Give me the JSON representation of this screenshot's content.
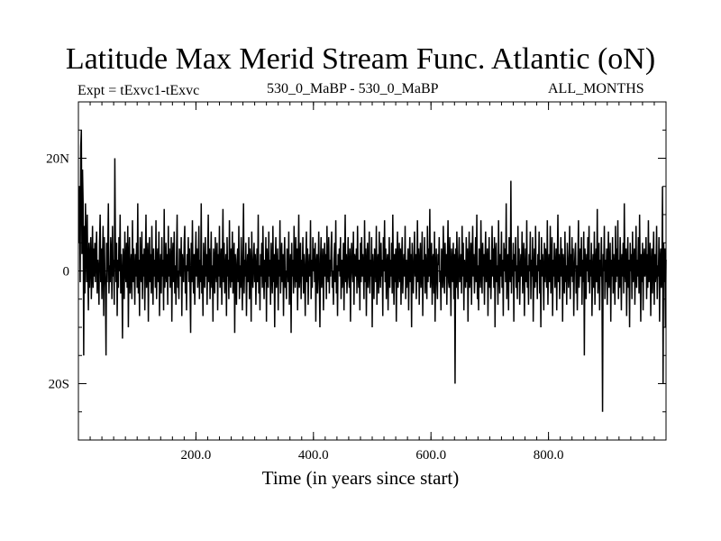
{
  "chart_data": {
    "type": "line",
    "title": "Latitude Max Merid Stream Func. Atlantic (oN)",
    "subtitle_left": "Expt = tExvc1-tExvc",
    "subtitle_center": "530_0_MaBP - 530_0_MaBP",
    "subtitle_right": "ALL_MONTHS",
    "xlabel": "Time (in years since start)",
    "ylabel": "",
    "xlim": [
      0,
      1000
    ],
    "ylim": [
      -30,
      30
    ],
    "x_major_ticks": [
      {
        "value": 200,
        "label": "200.0"
      },
      {
        "value": 400,
        "label": "400.0"
      },
      {
        "value": 600,
        "label": "600.0"
      },
      {
        "value": 800,
        "label": "800.0"
      }
    ],
    "y_major_ticks": [
      {
        "value": 20,
        "label": "20N"
      },
      {
        "value": 0,
        "label": "0"
      },
      {
        "value": -20,
        "label": "20S"
      }
    ],
    "y_minor_step": 5,
    "x_minor_step": 20,
    "zero_line": true,
    "series": [
      {
        "name": "Latitude of max meridional stream function (Atlantic)",
        "start_x": 1,
        "step_x": 1,
        "values": [
          5,
          15,
          -2,
          22,
          25,
          3,
          18,
          12,
          -15,
          8,
          -4,
          12,
          4,
          -2,
          10,
          0,
          -7,
          5,
          -3,
          2,
          6,
          -5,
          0,
          8,
          -3,
          4,
          -1,
          5,
          -2,
          3,
          7,
          -4,
          2,
          0,
          -6,
          5,
          10,
          -2,
          4,
          -5,
          2,
          8,
          -8,
          6,
          0,
          -3,
          -15,
          5,
          -2,
          4,
          12,
          -4,
          1,
          -2,
          6,
          3,
          -5,
          8,
          -1,
          2,
          -6,
          20,
          4,
          -2,
          5,
          -8,
          2,
          -3,
          6,
          0,
          10,
          -4,
          3,
          -1,
          -12,
          4,
          2,
          -5,
          7,
          0,
          -2,
          5,
          -3,
          8,
          -10,
          2,
          6,
          -4,
          0,
          3,
          -5,
          9,
          -2,
          4,
          0,
          -6,
          3,
          -1,
          5,
          -3,
          12,
          -4,
          2,
          -8,
          6,
          0,
          -2,
          7,
          -5,
          3,
          -1,
          4,
          -7,
          2,
          10,
          -3,
          0,
          5,
          -9,
          2,
          6,
          -2,
          3,
          -4,
          8,
          0,
          -6,
          4,
          -1,
          2,
          -3,
          9,
          -5,
          1,
          4,
          -2,
          7,
          -8,
          0,
          3,
          -4,
          6,
          -1,
          2,
          -7,
          11,
          -3,
          0,
          5,
          -2,
          3,
          -6,
          8,
          -1,
          4,
          -3,
          0,
          6,
          -9,
          2,
          5,
          -2,
          7,
          -4,
          1,
          -6,
          3,
          10,
          -3,
          0,
          -5,
          4,
          2,
          -1,
          6,
          -8,
          3,
          0,
          -2,
          5,
          8,
          -4,
          1,
          -7,
          3,
          0,
          6,
          -2,
          4,
          -3,
          -11,
          5,
          -2,
          9,
          0,
          -4,
          3,
          -6,
          2,
          7,
          -1,
          4,
          -3,
          0,
          8,
          -5,
          2,
          -2,
          12,
          -4,
          1,
          -8,
          5,
          0,
          -3,
          6,
          -1,
          3,
          -6,
          2,
          10,
          -2,
          4,
          -5,
          0,
          7,
          -3,
          1,
          -9,
          4,
          2,
          -4,
          6,
          0,
          -2,
          5,
          -7,
          3,
          -1,
          8,
          -3,
          0,
          4,
          -6,
          2,
          11,
          -2,
          5,
          -4,
          0,
          3,
          -8,
          6,
          -1,
          2,
          -5,
          9,
          0,
          -3,
          4,
          -2,
          7,
          -4,
          1,
          5,
          -11,
          3,
          0,
          -6,
          2,
          4,
          -2,
          8,
          -5,
          1,
          -3,
          6,
          0,
          -7,
          3,
          12,
          -4,
          2,
          -1,
          5,
          -8,
          0,
          3,
          -2,
          6,
          -5,
          4,
          1,
          -9,
          7,
          0,
          -3,
          2,
          5,
          -2,
          3,
          -6,
          0,
          4,
          -2,
          10,
          -4,
          1,
          -7,
          3,
          -1,
          5,
          -3,
          8,
          0,
          -5,
          2,
          -2,
          6,
          -9,
          4,
          0,
          -3,
          7,
          -1,
          2,
          -6,
          5,
          0,
          -4,
          8,
          -2,
          3,
          -10,
          1,
          6,
          -3,
          0,
          4,
          -7,
          2,
          -1,
          9,
          -4,
          0,
          5,
          -2,
          3,
          -8,
          1,
          6,
          -3,
          0,
          -5,
          4,
          2,
          -2,
          7,
          -6,
          0,
          3,
          -11,
          5,
          -1,
          2,
          -4,
          8,
          0,
          -3,
          6,
          -2,
          4,
          -7,
          1,
          10,
          -3,
          0,
          5,
          -5,
          2,
          -1,
          6,
          -4,
          3,
          0,
          -8,
          2,
          7,
          -2,
          4,
          -6,
          0,
          3,
          -1,
          9,
          -5,
          2,
          -3,
          6,
          0,
          4,
          -2,
          5,
          -9,
          1,
          3,
          -4,
          0,
          7,
          -2,
          -10,
          2,
          6,
          -3,
          0,
          4,
          -7,
          1,
          5,
          -1,
          3,
          -5,
          8,
          0,
          -2,
          6,
          -4,
          2,
          -1,
          4,
          7,
          -3,
          0,
          -6,
          2,
          5,
          -2,
          9,
          -4,
          1,
          -8,
          3,
          0,
          4,
          -1,
          6,
          -5,
          2,
          -3,
          0,
          5,
          -7,
          2,
          10,
          -2,
          3,
          -4,
          0,
          6,
          -1,
          -3,
          4,
          -9,
          1,
          5,
          0,
          -2,
          7,
          -6,
          3,
          2,
          -1,
          4,
          -4,
          8,
          0,
          -3,
          2,
          -7,
          5,
          -2,
          6,
          -1,
          3,
          0,
          -5,
          9,
          -2,
          4,
          -8,
          1,
          5,
          -3,
          0,
          7,
          -4,
          2,
          -1,
          6,
          -10,
          3,
          0,
          -5,
          4,
          2,
          -2,
          8,
          -6,
          1,
          3,
          -4,
          7,
          0,
          -3,
          5,
          -1,
          2,
          -8,
          6,
          0,
          9,
          -2,
          4,
          -5,
          1,
          3,
          -7,
          0,
          6,
          -3,
          2,
          -1,
          5,
          -4,
          10,
          0,
          -6,
          3,
          -2,
          4,
          -9,
          1,
          7,
          -3,
          0,
          5,
          -2,
          4,
          -6,
          2,
          6,
          -4,
          0,
          3,
          -1,
          8,
          -5,
          2,
          -3,
          0,
          4,
          -7,
          1,
          6,
          -2,
          3,
          -10,
          5,
          0,
          -4,
          2,
          7,
          -1,
          3,
          -5,
          0,
          9,
          -2,
          4,
          -6,
          1,
          5,
          -3,
          0,
          7,
          -8,
          2,
          -1,
          6,
          -4,
          3,
          0,
          -5,
          8,
          -2,
          4,
          -1,
          11,
          -3,
          0,
          5,
          -6,
          2,
          3,
          -4,
          7,
          -9,
          0,
          4,
          -2,
          -5,
          3,
          1,
          6,
          -2,
          0,
          -7,
          4,
          2,
          -3,
          8,
          0,
          -4,
          5,
          -1,
          3,
          -6,
          2,
          9,
          -2,
          -3,
          6,
          0,
          -8,
          4,
          1,
          -2,
          5,
          -5,
          3,
          -20,
          4,
          -3,
          7,
          0,
          -5,
          2,
          6,
          -2,
          0,
          3,
          -4,
          8,
          -1,
          5,
          -7,
          2,
          0,
          -3,
          6,
          -2,
          4,
          -9,
          1,
          7,
          -3,
          0,
          5,
          -6,
          2,
          8,
          -1,
          3,
          -4,
          0,
          6,
          -2,
          10,
          -5,
          1,
          -7,
          4,
          2,
          -3,
          9,
          0,
          -4,
          5,
          -1,
          3,
          -6,
          2,
          7,
          -2,
          0,
          4,
          -8,
          1,
          6,
          -3,
          2,
          -5,
          0,
          8,
          -1,
          4,
          -3,
          6,
          -10,
          3,
          5,
          -2,
          1,
          -6,
          9,
          0,
          -4,
          3,
          -1,
          7,
          -3,
          2,
          -8,
          5,
          0,
          4,
          -2,
          12,
          -5,
          1,
          3,
          -7,
          6,
          0,
          -2,
          16,
          -4,
          2,
          -1,
          5,
          -9,
          3,
          0,
          6,
          -3,
          1,
          -5,
          8,
          -2,
          4,
          -6,
          0,
          3,
          -1,
          7,
          -4,
          2,
          5,
          -8,
          0,
          4,
          -2,
          9,
          -3,
          1,
          -6,
          3,
          0,
          7,
          -5,
          2,
          -1,
          6,
          -9,
          0,
          4,
          -3,
          8,
          -2,
          1,
          -5,
          3,
          0,
          7,
          -4,
          2,
          -10,
          6,
          -1,
          3,
          0,
          -7,
          5,
          -2,
          4,
          1,
          -3,
          9,
          -6,
          0,
          3,
          -2,
          8,
          -4,
          1,
          6,
          -8,
          2,
          -1,
          5,
          -3,
          0,
          4,
          -7,
          2,
          10,
          -2,
          3,
          -5,
          0,
          6,
          -1,
          4,
          -9,
          3,
          0,
          -4,
          7,
          -2,
          1,
          -6,
          5,
          2,
          -3,
          0,
          8,
          -5,
          3,
          -1,
          6,
          -2,
          4,
          -8,
          0,
          3,
          5,
          -4,
          1,
          -7,
          2,
          9,
          -3,
          0,
          4,
          -1,
          6,
          -6,
          2,
          -2,
          7,
          -15,
          4,
          1,
          -5,
          3,
          0,
          6,
          -2,
          8,
          -4,
          2,
          -1,
          5,
          -8,
          0,
          3,
          -3,
          7,
          -6,
          1,
          4,
          -2,
          11,
          -4,
          0,
          5,
          -7,
          2,
          -1,
          6,
          -3,
          -25,
          3,
          0,
          8,
          -5,
          2,
          -2,
          4,
          -6,
          1,
          7,
          -3,
          0,
          5,
          -9,
          2,
          -1,
          6,
          -4,
          3,
          0,
          -6,
          8,
          -2,
          4,
          -1,
          9,
          -5,
          2,
          -3,
          6,
          0,
          -7,
          3,
          -1,
          5,
          -4,
          12,
          0,
          -2,
          4,
          -8,
          1,
          6,
          -3,
          2,
          -10,
          5,
          0,
          3,
          -5,
          7,
          -2,
          0,
          4,
          -6,
          1,
          8,
          -3,
          2,
          -1,
          6,
          -4,
          10,
          0,
          -9,
          3,
          -2,
          5,
          -7,
          2,
          4,
          -1,
          0,
          6,
          -5,
          3,
          -3,
          9,
          -2,
          0,
          5,
          -8,
          1,
          4,
          -4,
          2,
          7,
          -6,
          3,
          -2,
          0,
          8,
          -5,
          1,
          -1,
          6,
          -9,
          2,
          4,
          -3,
          0,
          15,
          -20,
          5,
          -2,
          4,
          -10,
          2
        ]
      }
    ]
  }
}
